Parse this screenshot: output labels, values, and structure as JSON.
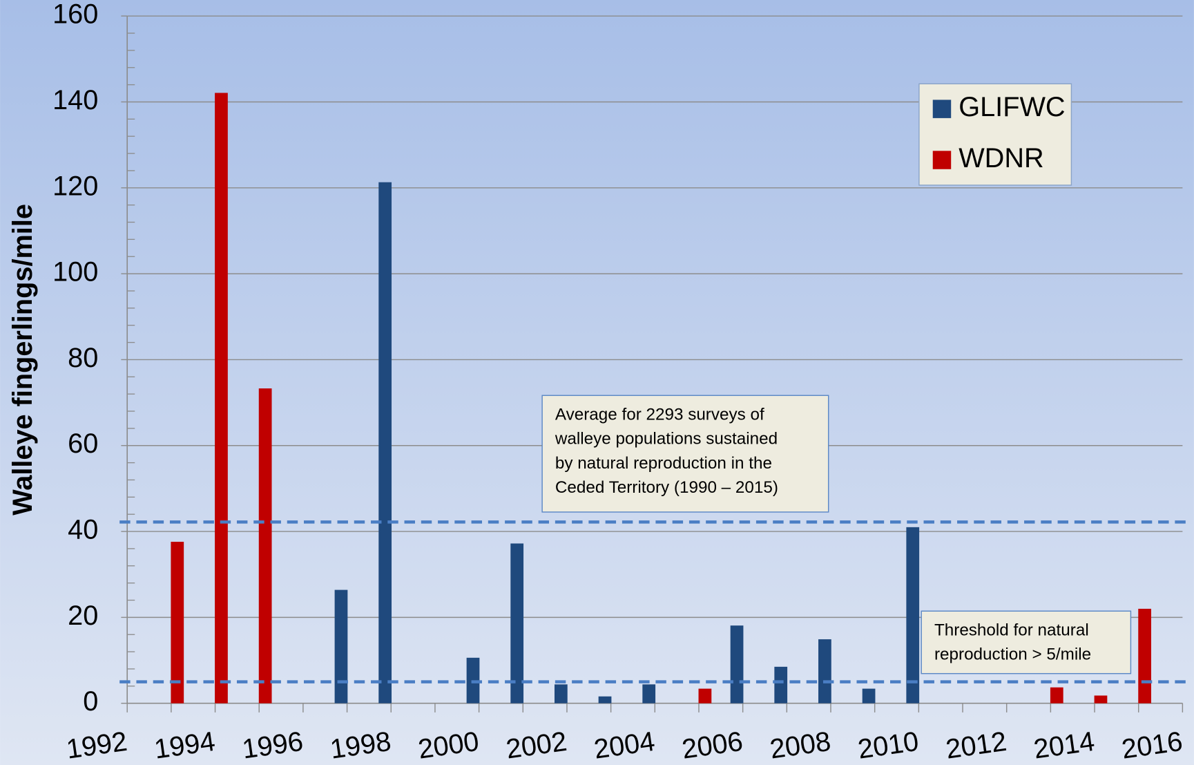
{
  "chart_data": {
    "type": "bar",
    "y_label": "Walleye fingerlings/mile",
    "xlim": [
      1992,
      2016
    ],
    "xticks": [
      1992,
      1994,
      1996,
      1998,
      2000,
      2002,
      2004,
      2006,
      2008,
      2010,
      2012,
      2014,
      2016
    ],
    "ylim": [
      0,
      160
    ],
    "yticks": [
      0,
      20,
      40,
      60,
      80,
      100,
      120,
      140,
      160
    ],
    "grid": true,
    "legend": "upper right",
    "series": [
      {
        "name": "GLIFWC",
        "color": "#1f497d",
        "x": [
          1997,
          1998,
          2000,
          2001,
          2002,
          2003,
          2004,
          2006,
          2007,
          2008,
          2009,
          2010
        ],
        "values": [
          26.4,
          121.3,
          10.6,
          37.2,
          4.4,
          1.6,
          4.4,
          18.1,
          8.5,
          14.9,
          3.4,
          41.0
        ]
      },
      {
        "name": "WDNR",
        "color": "#c00000",
        "x": [
          1993,
          1994,
          1995,
          2005,
          2013,
          2014,
          2015
        ],
        "values": [
          37.6,
          142.1,
          73.3,
          3.4,
          3.7,
          1.8,
          22.0
        ]
      }
    ],
    "reference_lines": [
      {
        "value": 42.2,
        "color": "#4a7ec4",
        "label_lines": [
          "Average for 2293 surveys of",
          "walleye populations sustained",
          "by natural reproduction in the",
          "Ceded Territory (1990 – 2015)"
        ]
      },
      {
        "value": 5,
        "color": "#4a7ec4",
        "label_lines": [
          "Threshold for natural",
          "reproduction > 5/mile"
        ]
      }
    ]
  }
}
